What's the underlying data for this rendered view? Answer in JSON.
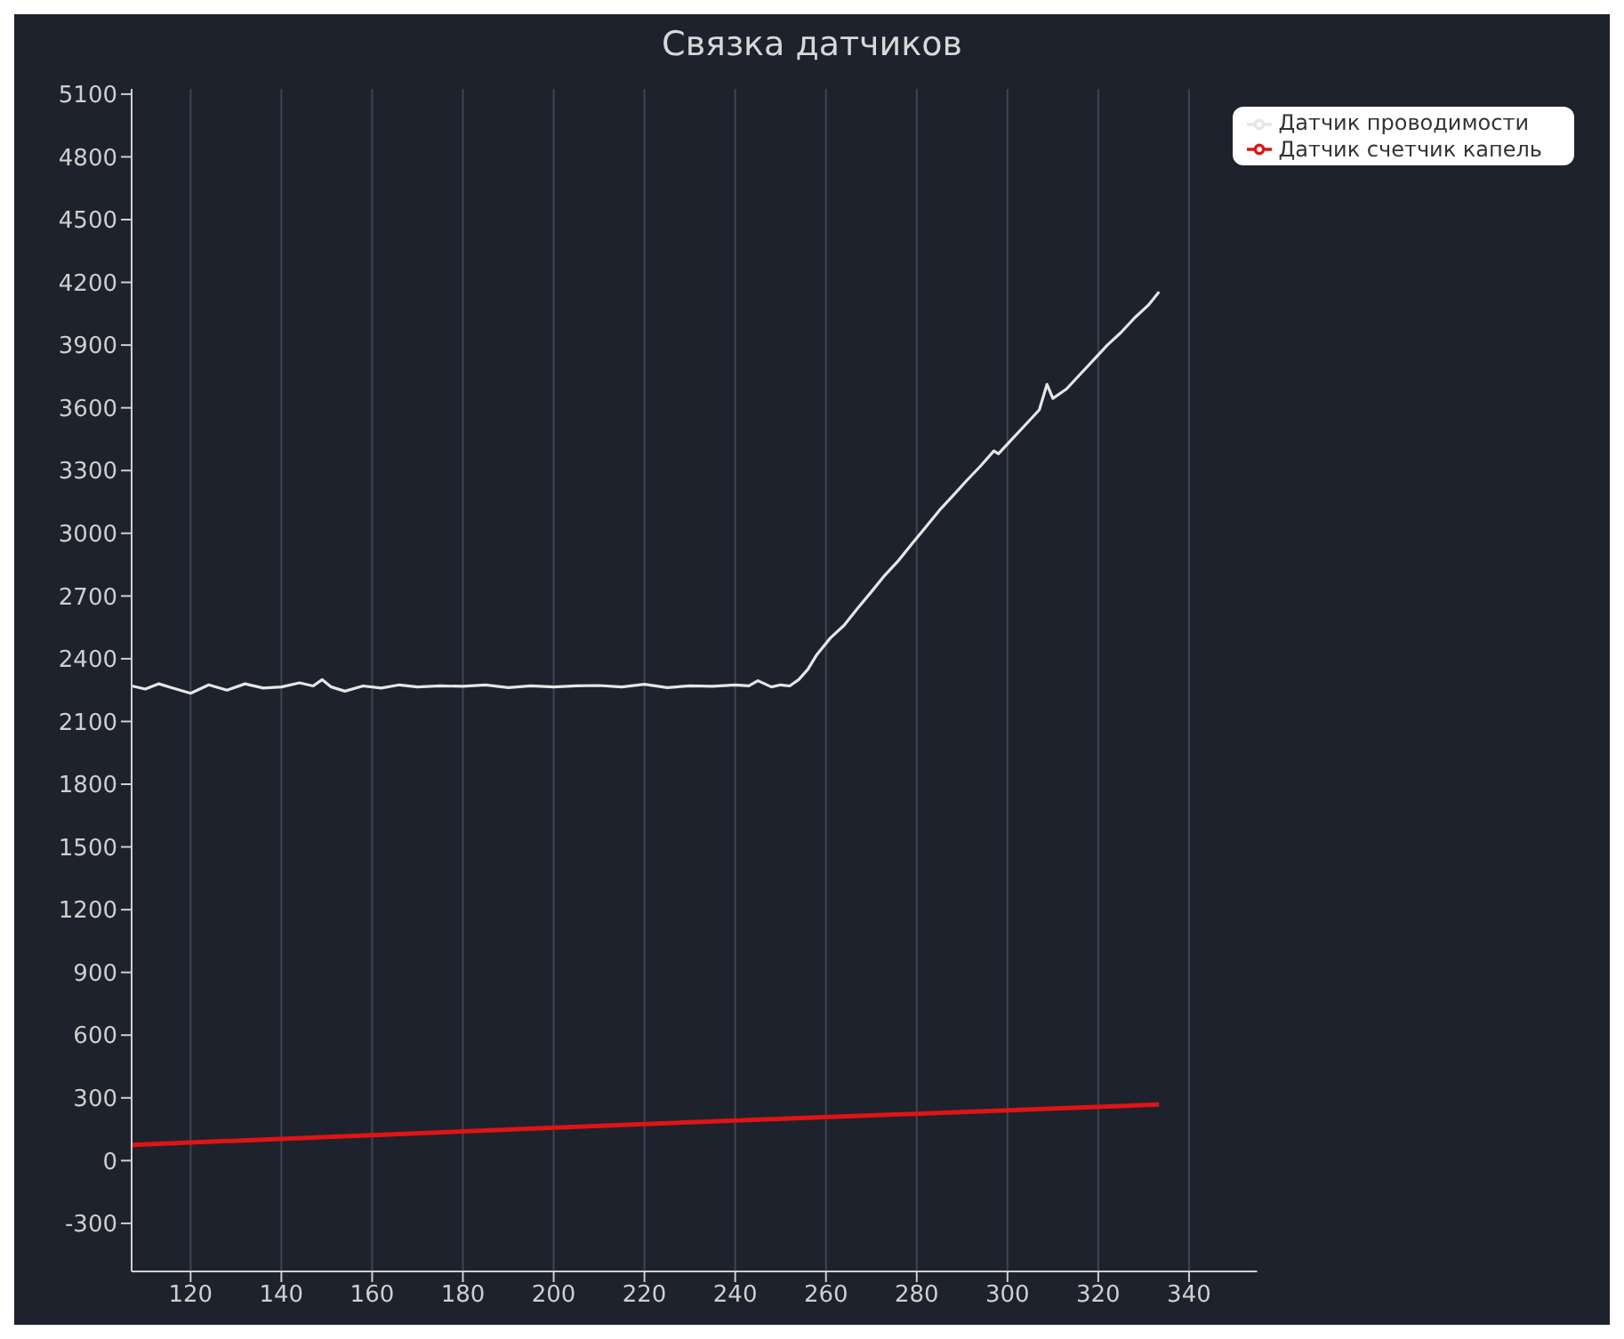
{
  "chart_data": {
    "type": "line",
    "title": "Связка датчиков",
    "xlim": [
      107,
      355
    ],
    "xticks": [
      120,
      140,
      160,
      180,
      200,
      220,
      240,
      260,
      280,
      300,
      320,
      340
    ],
    "ylim": [
      -530,
      5125
    ],
    "yticks": [
      -300,
      0,
      300,
      600,
      900,
      1200,
      1500,
      1800,
      2100,
      2400,
      2700,
      3000,
      3300,
      3600,
      3900,
      4200,
      4500,
      4800,
      5100
    ],
    "grid": true,
    "legend": "top right",
    "marker": "none",
    "line_style": "solid",
    "series": [
      {
        "name": "Датчик проводимости",
        "color": "#e6e6e6",
        "x": [
          107,
          110,
          113,
          116,
          120,
          124,
          128,
          132,
          136,
          140,
          144,
          147,
          149,
          151,
          154,
          158,
          162,
          166,
          170,
          175,
          180,
          185,
          190,
          195,
          200,
          205,
          210,
          215,
          220,
          225,
          230,
          235,
          240,
          243,
          245,
          248,
          250,
          252,
          254,
          256,
          258,
          261,
          264,
          267,
          270,
          273,
          276,
          279,
          282,
          285,
          288,
          291,
          294,
          297,
          298,
          301,
          304,
          307,
          308.7,
          310,
          313,
          316,
          319,
          322,
          325,
          328,
          331,
          333.4
        ],
        "values": [
          2270,
          2255,
          2280,
          2260,
          2235,
          2275,
          2250,
          2280,
          2260,
          2265,
          2285,
          2270,
          2300,
          2265,
          2245,
          2270,
          2260,
          2275,
          2265,
          2270,
          2268,
          2275,
          2262,
          2270,
          2265,
          2270,
          2272,
          2265,
          2278,
          2262,
          2270,
          2268,
          2275,
          2270,
          2295,
          2265,
          2275,
          2270,
          2300,
          2349,
          2420,
          2500,
          2560,
          2642,
          2720,
          2800,
          2870,
          2951,
          3030,
          3110,
          3180,
          3252,
          3320,
          3394,
          3380,
          3450,
          3520,
          3590,
          3712,
          3645,
          3690,
          3760,
          3830,
          3900,
          3960,
          4030,
          4090,
          4155
        ]
      },
      {
        "name": "Датчик счетчик капель",
        "color": "#e01414",
        "x": [
          107,
          220,
          333.4
        ],
        "values": [
          75,
          175,
          268
        ]
      }
    ]
  }
}
